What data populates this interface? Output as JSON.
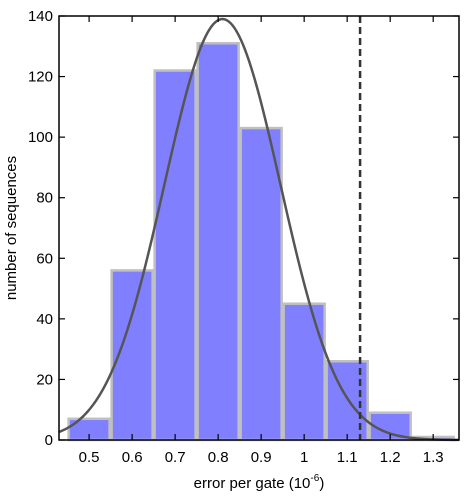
{
  "chart_data": {
    "type": "histogram",
    "xlabel": "error per gate (10",
    "xlabel_exponent": "-6",
    "xlabel_close": ")",
    "ylabel": "number of sequences",
    "xlim": [
      0.43,
      1.36
    ],
    "ylim": [
      0,
      140
    ],
    "x_ticks": [
      "0.5",
      "0.6",
      "0.7",
      "0.8",
      "0.9",
      "1",
      "1.1",
      "1.2",
      "1.3"
    ],
    "y_ticks": [
      "0",
      "20",
      "40",
      "60",
      "80",
      "100",
      "120",
      "140"
    ],
    "bins": [
      {
        "x0": 0.45,
        "x1": 0.55,
        "value": 7
      },
      {
        "x0": 0.55,
        "x1": 0.65,
        "value": 56
      },
      {
        "x0": 0.65,
        "x1": 0.75,
        "value": 122
      },
      {
        "x0": 0.75,
        "x1": 0.85,
        "value": 131
      },
      {
        "x0": 0.85,
        "x1": 0.95,
        "value": 103
      },
      {
        "x0": 0.95,
        "x1": 1.05,
        "value": 45
      },
      {
        "x0": 1.05,
        "x1": 1.15,
        "value": 26
      },
      {
        "x0": 1.15,
        "x1": 1.25,
        "value": 9
      },
      {
        "x0": 1.25,
        "x1": 1.35,
        "value": 1
      }
    ],
    "fit_curve": {
      "type": "gaussian",
      "mean": 0.81,
      "sigma": 0.135,
      "peak": 139
    },
    "reference_line": {
      "x": 1.13,
      "style": "dashed"
    },
    "colors": {
      "bar_fill": "#8080ff",
      "bar_edge": "#c0c0c0",
      "curve": "#555555",
      "ref_line": "#333333"
    }
  }
}
